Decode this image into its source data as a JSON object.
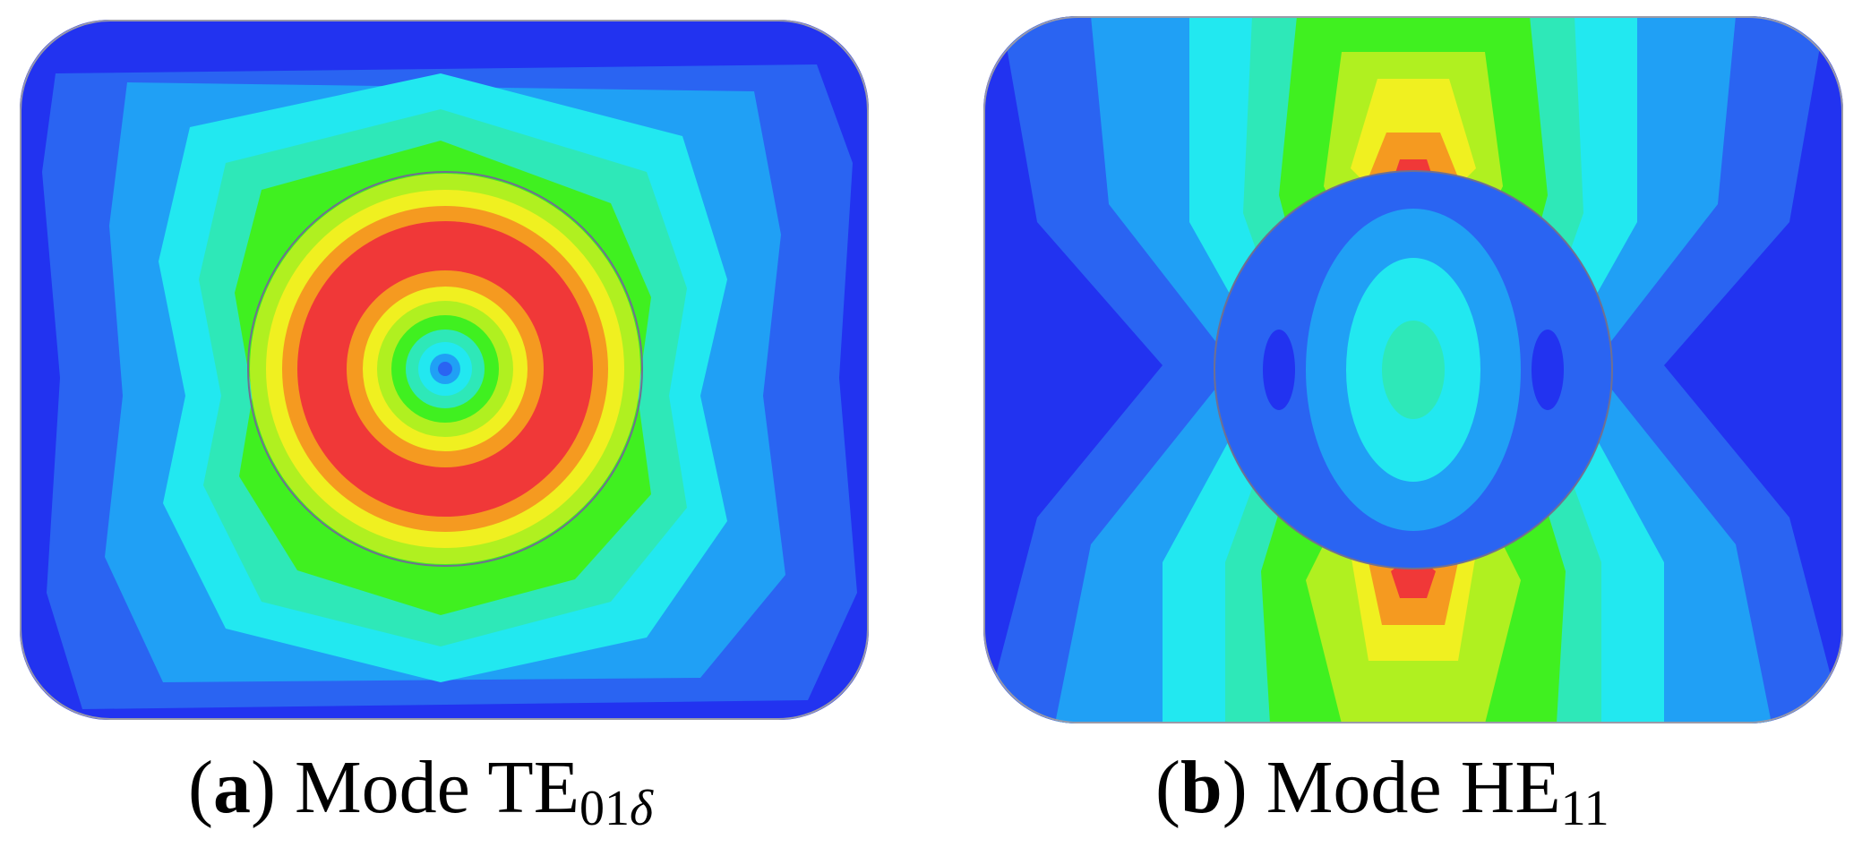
{
  "panels": [
    {
      "id": "a",
      "caption": {
        "open": "(",
        "letter": "a",
        "close": ")",
        "text": " Mode TE",
        "subscript": "01",
        "subscript_symbol": "δ"
      }
    },
    {
      "id": "b",
      "caption": {
        "open": "(",
        "letter": "b",
        "close": ")",
        "text": " Mode HE",
        "subscript": "11",
        "subscript_symbol": ""
      }
    }
  ],
  "colors": {
    "deep_blue": "#2233f0",
    "blue": "#2a64f2",
    "light_blue": "#20a0f5",
    "cyan": "#22e8f0",
    "teal": "#2ee8b8",
    "green": "#40f020",
    "yellow_green": "#b0f020",
    "yellow": "#f0f020",
    "orange": "#f59a20",
    "red": "#f03838",
    "outline": "#707090"
  }
}
